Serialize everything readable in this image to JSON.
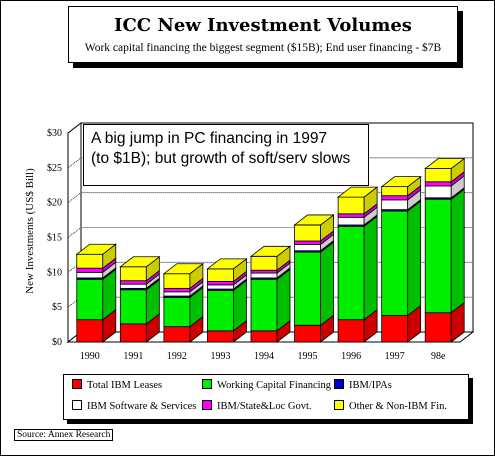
{
  "title": "ICC New Investment Volumes",
  "subtitle": "Work capital financing the biggest segment ($15B); End user financing - $7B",
  "annotation": {
    "line1": "A big jump in PC financing in 1997",
    "line2": "(to $1B); but growth of soft/serv slows"
  },
  "source": "Source: Annex Research",
  "chart_data": {
    "type": "bar",
    "stacked": true,
    "style": "3d",
    "categories": [
      "1990",
      "1991",
      "1992",
      "1993",
      "1994",
      "1995",
      "1996",
      "1997",
      "98e"
    ],
    "ylabel": "New Investments (US$ Bill)",
    "xlabel": "",
    "ylim": [
      0,
      30
    ],
    "yticks": [
      0,
      5,
      10,
      15,
      20,
      25,
      30
    ],
    "ytick_labels": [
      "$0",
      "$5",
      "$10",
      "$15",
      "$20",
      "$25",
      "$30"
    ],
    "grid": true,
    "legend_position": "bottom",
    "series": [
      {
        "name": "Total IBM Leases",
        "color": "#ff0000",
        "values": [
          3.2,
          2.6,
          2.2,
          1.6,
          1.6,
          2.4,
          3.2,
          3.8,
          4.2
        ]
      },
      {
        "name": "Working Capital Financing",
        "color": "#00ee00",
        "values": [
          5.8,
          4.9,
          4.2,
          5.8,
          7.4,
          10.5,
          13.4,
          15.0,
          16.3
        ]
      },
      {
        "name": "IBM/IPAs",
        "color": "#0000cc",
        "values": [
          0.2,
          0.2,
          0.2,
          0.2,
          0.2,
          0.2,
          0.2,
          0.2,
          0.2
        ]
      },
      {
        "name": "IBM Software & Services",
        "color": "#ffffff",
        "values": [
          0.8,
          0.6,
          0.6,
          0.6,
          0.7,
          0.9,
          1.1,
          1.4,
          1.7
        ]
      },
      {
        "name": "IBM/State&Loc Govt.",
        "color": "#ff00ff",
        "values": [
          0.6,
          0.5,
          0.5,
          0.5,
          0.4,
          0.5,
          0.5,
          0.6,
          0.6
        ]
      },
      {
        "name": "Other & Non-IBM Fin.",
        "color": "#ffff00",
        "values": [
          2.0,
          2.0,
          2.1,
          1.8,
          2.0,
          2.3,
          2.4,
          1.3,
          1.9
        ]
      }
    ]
  }
}
